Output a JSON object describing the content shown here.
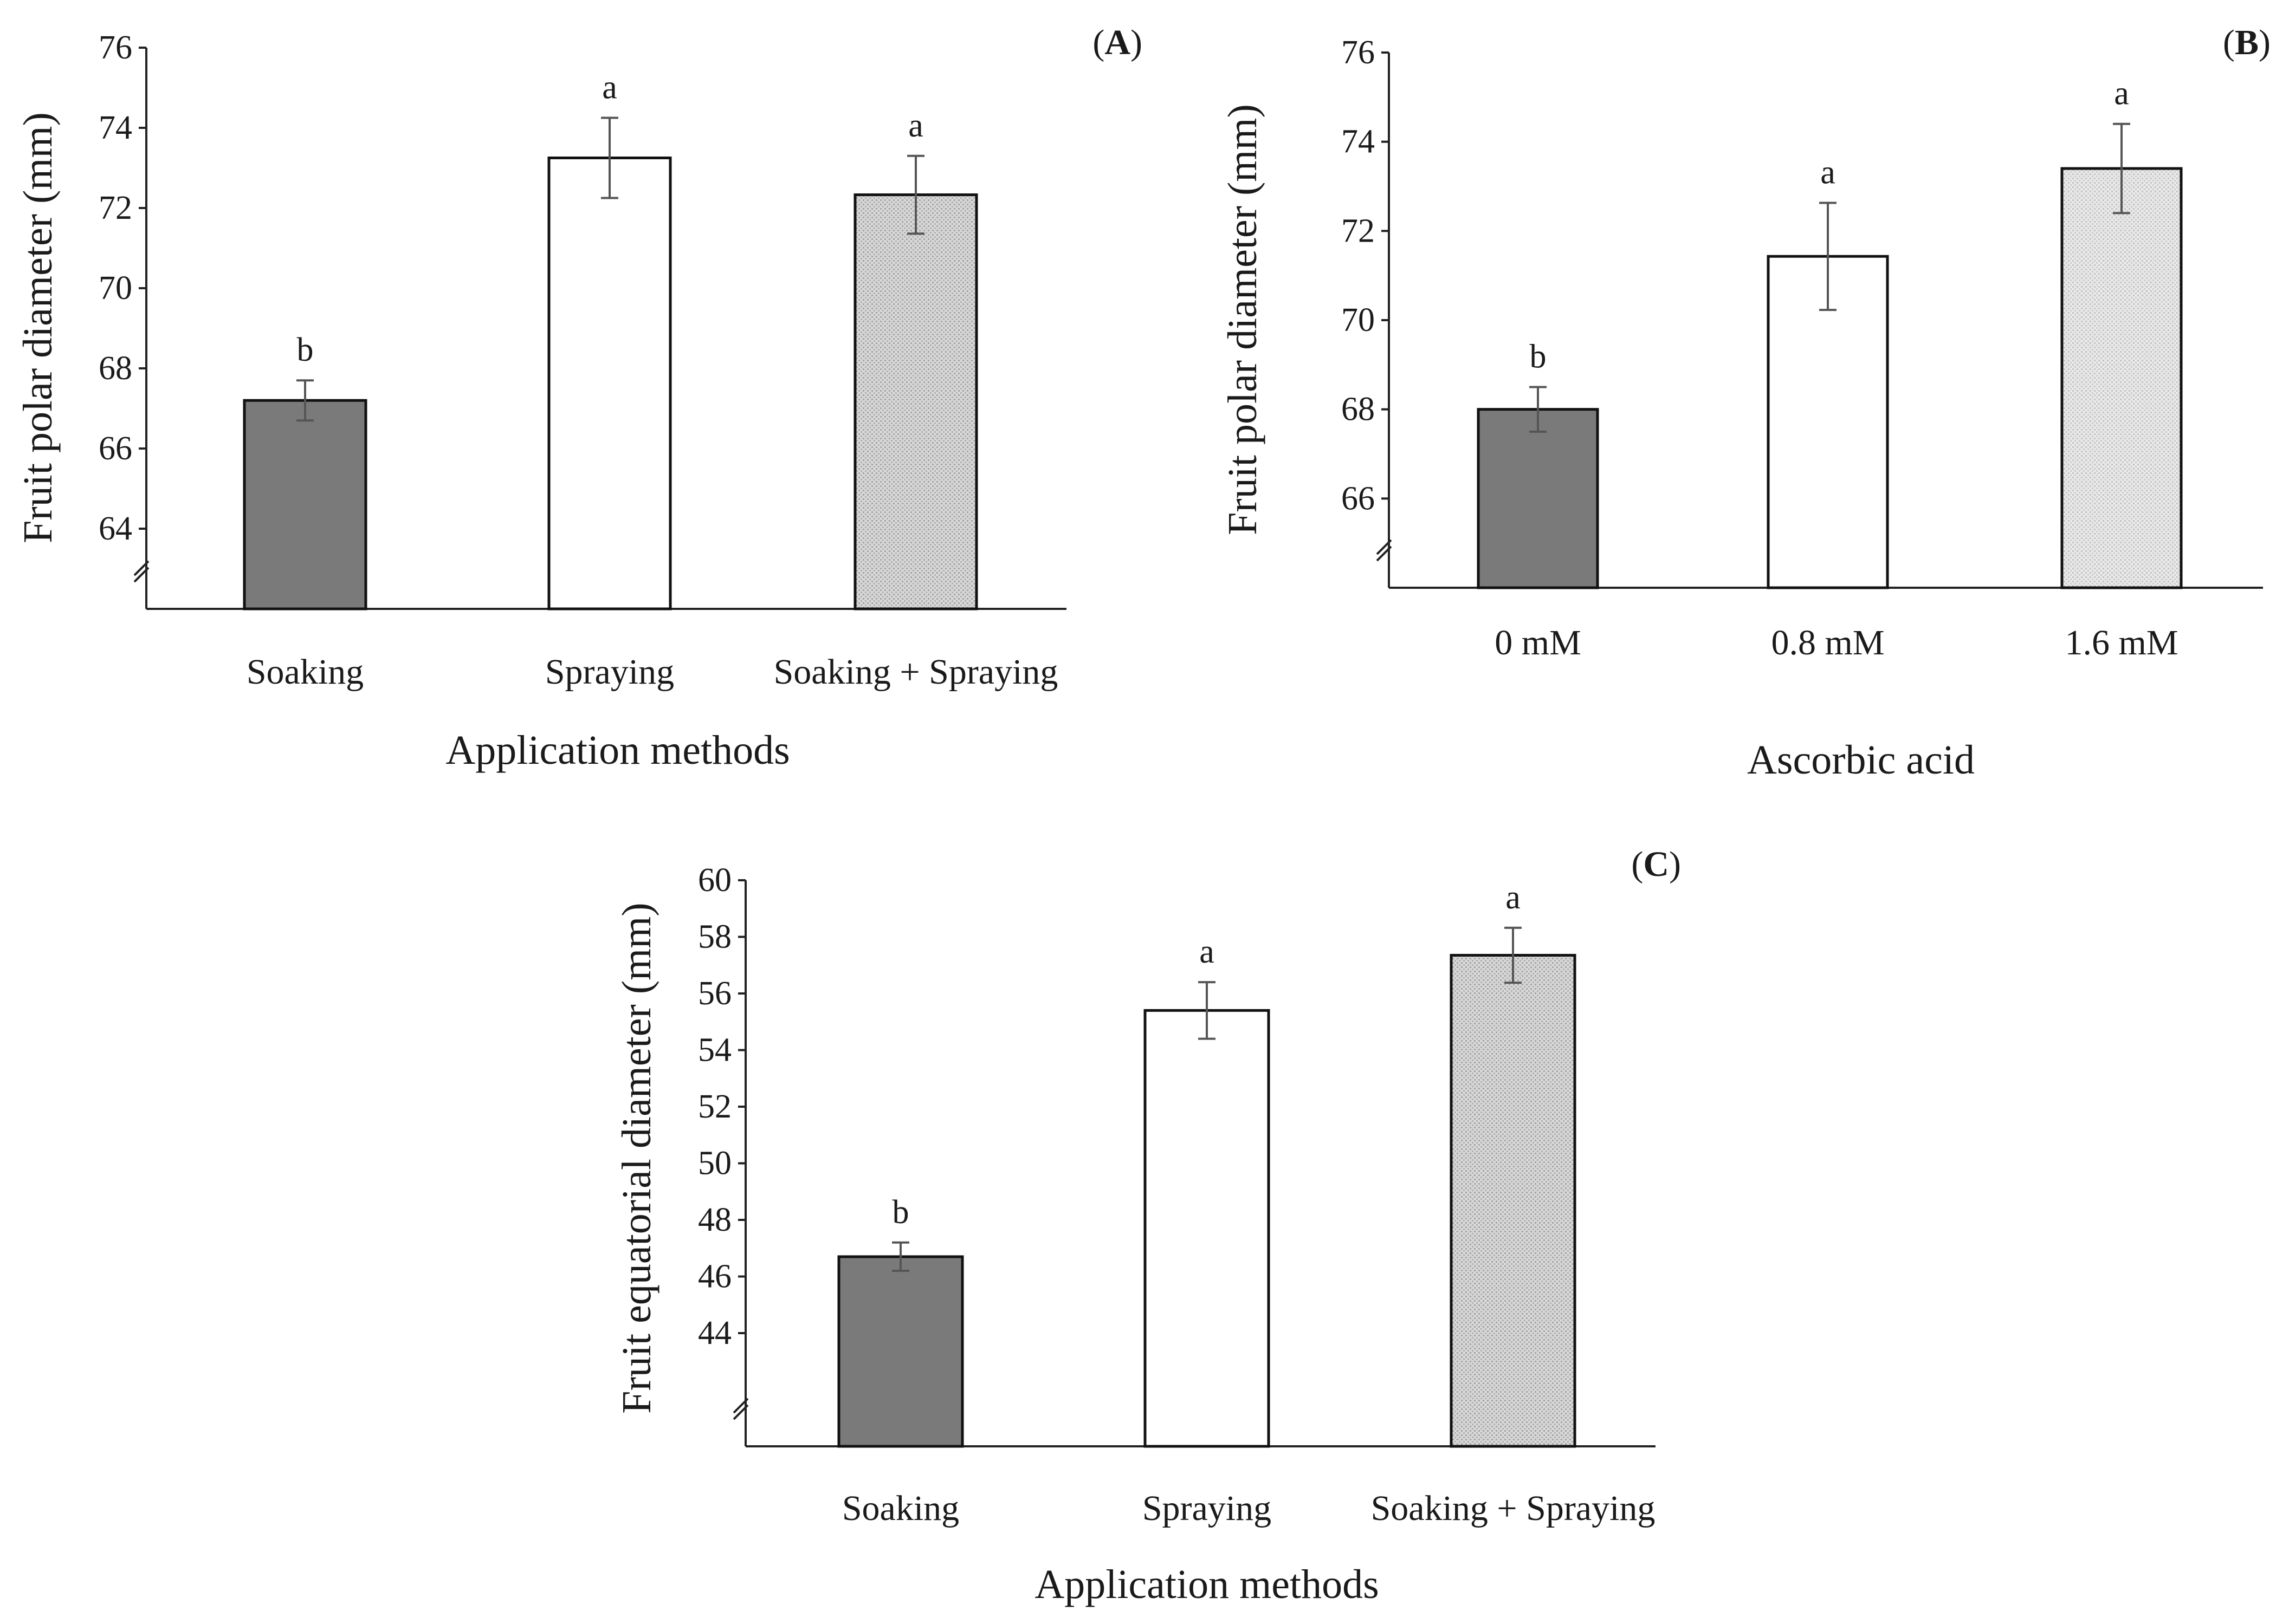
{
  "chart_data": [
    {
      "type": "bar",
      "panel": "A",
      "categories": [
        "Soaking",
        "Spraying",
        "Soaking + Spraying"
      ],
      "values": [
        67.2,
        73.25,
        72.33
      ],
      "errors": [
        0.5,
        1.0,
        0.97
      ],
      "letters": [
        "b",
        "a",
        "a"
      ],
      "fills": [
        "#7a7a7a",
        "#ffffff",
        "#dcdcdc"
      ],
      "patterned": [
        false,
        false,
        true
      ],
      "ylabel": "Fruit polar diameter (mm)",
      "xlabel": "Application methods",
      "yticks": [
        64,
        66,
        68,
        70,
        72,
        74,
        76
      ],
      "ylim": [
        62,
        76
      ],
      "axis_break": true,
      "grid": false
    },
    {
      "type": "bar",
      "panel": "B",
      "categories": [
        "0 mM",
        "0.8 mM",
        "1.6 mM"
      ],
      "values": [
        68.0,
        71.43,
        73.4
      ],
      "errors": [
        0.5,
        1.2,
        1.0
      ],
      "letters": [
        "b",
        "a",
        "a"
      ],
      "fills": [
        "#7a7a7a",
        "#ffffff",
        "#e6e6e6"
      ],
      "patterned": [
        false,
        false,
        true
      ],
      "ylabel": "Fruit polar diameter (mm)",
      "xlabel": "Ascorbic acid",
      "yticks": [
        66,
        68,
        70,
        72,
        74,
        76
      ],
      "ylim": [
        64,
        76
      ],
      "axis_break": true,
      "grid": false
    },
    {
      "type": "bar",
      "panel": "C",
      "categories": [
        "Soaking",
        "Spraying",
        "Soaking + Spraying"
      ],
      "values": [
        46.7,
        55.4,
        57.35
      ],
      "errors": [
        0.5,
        1.0,
        0.97
      ],
      "letters": [
        "b",
        "a",
        "a"
      ],
      "fills": [
        "#7a7a7a",
        "#ffffff",
        "#dcdcdc"
      ],
      "patterned": [
        false,
        false,
        true
      ],
      "ylabel": "Fruit equatorial diameter  (mm)",
      "xlabel": "Application methods",
      "yticks": [
        44,
        46,
        48,
        50,
        52,
        54,
        56,
        58,
        60
      ],
      "ylim": [
        40,
        60
      ],
      "axis_break": true,
      "grid": false
    }
  ]
}
